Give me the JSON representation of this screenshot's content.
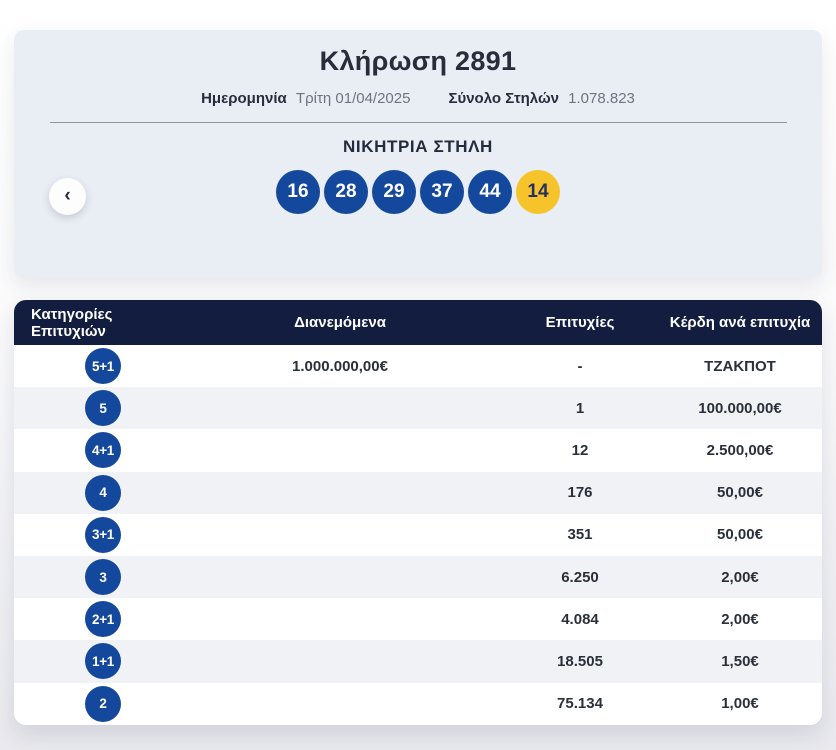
{
  "draw": {
    "title": "Κλήρωση 2891",
    "date_label": "Ημερομηνία",
    "date_value": "Τρίτη 01/04/2025",
    "columns_label": "Σύνολο Στηλών",
    "columns_value": "1.078.823",
    "winning_title": "ΝΙΚΗΤΡΙΑ ΣΤΗΛΗ",
    "numbers": [
      "16",
      "28",
      "29",
      "37",
      "44"
    ],
    "joker_number": "14",
    "prev_icon": "‹"
  },
  "table": {
    "headers": [
      "Κατηγορίες Επιτυχιών",
      "Διανεμόμενα",
      "Επιτυχίες",
      "Κέρδη ανά επιτυχία"
    ],
    "rows": [
      {
        "category": "5+1",
        "distributed": "1.000.000,00€",
        "winners": "-",
        "prize": "ΤΖΑΚΠΟΤ"
      },
      {
        "category": "5",
        "distributed": "",
        "winners": "1",
        "prize": "100.000,00€"
      },
      {
        "category": "4+1",
        "distributed": "",
        "winners": "12",
        "prize": "2.500,00€"
      },
      {
        "category": "4",
        "distributed": "",
        "winners": "176",
        "prize": "50,00€"
      },
      {
        "category": "3+1",
        "distributed": "",
        "winners": "351",
        "prize": "50,00€"
      },
      {
        "category": "3",
        "distributed": "",
        "winners": "6.250",
        "prize": "2,00€"
      },
      {
        "category": "2+1",
        "distributed": "",
        "winners": "4.084",
        "prize": "2,00€"
      },
      {
        "category": "1+1",
        "distributed": "",
        "winners": "18.505",
        "prize": "1,50€"
      },
      {
        "category": "2",
        "distributed": "",
        "winners": "75.134",
        "prize": "1,00€"
      }
    ]
  },
  "colors": {
    "ball_blue": "#14489c",
    "ball_yellow": "#f7c32b",
    "header_navy": "#121d3f",
    "card_bg": "#e9edf4",
    "row_alt": "#f1f2f5"
  }
}
